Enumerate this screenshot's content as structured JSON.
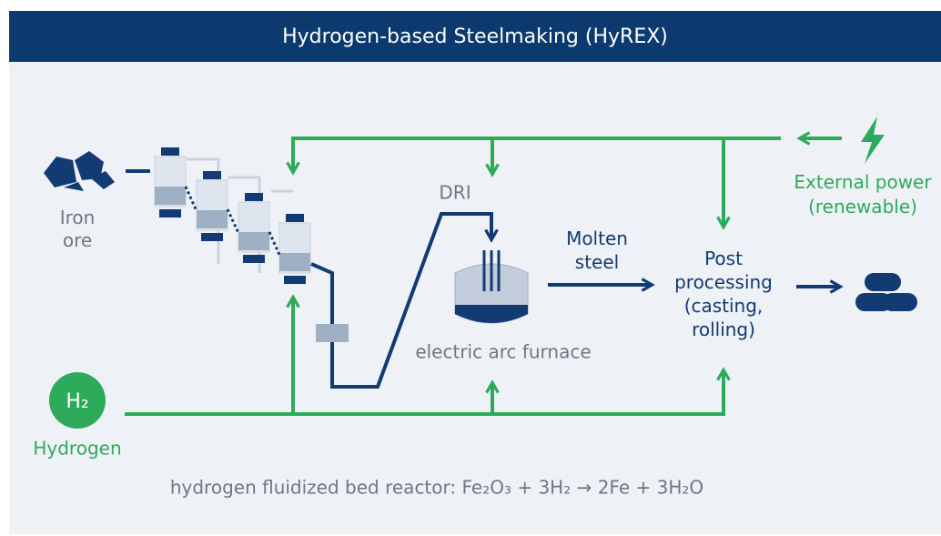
{
  "title": "Hydrogen-based Steelmaking (HyREX)",
  "nodes": [
    {
      "label": [
        "Iron",
        "ore"
      ]
    },
    {
      "label": [
        "DRI"
      ]
    },
    {
      "label": [
        "electric arc furnace"
      ]
    },
    {
      "label": [
        "Molten",
        "steel"
      ]
    },
    {
      "label": [
        "Post",
        "processing",
        "(casting,",
        "rolling)"
      ]
    },
    {
      "label": [
        "External power",
        "(renewable)"
      ]
    },
    {
      "label": [
        "H₂"
      ]
    },
    {
      "label": [
        "Hydrogen"
      ]
    }
  ],
  "caption": "hydrogen fluidized bed reactor: Fe₂O₃ + 3H₂ → 2Fe + 3H₂O"
}
